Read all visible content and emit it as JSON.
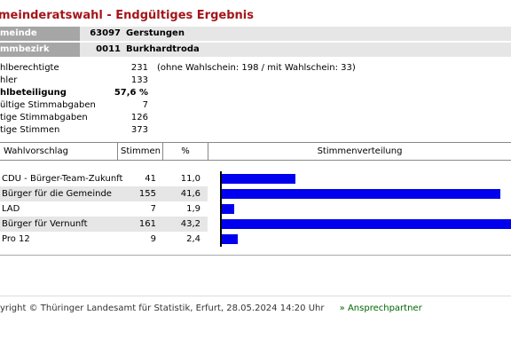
{
  "title": "meinderatswahl - Endgültiges Ergebnis",
  "gemeinde": {
    "label": "meinde",
    "number": "63097",
    "name": "Gerstungen"
  },
  "bezirk": {
    "label": "mmbezirk",
    "number": "0011",
    "name": "Burkhardtroda"
  },
  "stats": [
    {
      "label": "hlberechtigte",
      "value": "231",
      "extra": "(ohne Wahlschein: 198 / mit Wahlschein: 33)",
      "bold": false
    },
    {
      "label": "hler",
      "value": "133",
      "extra": "",
      "bold": false
    },
    {
      "label": "hlbeteiligung",
      "value": "57,6 %",
      "extra": "",
      "bold": true
    },
    {
      "label": "ültige Stimmabgaben",
      "value": "7",
      "extra": "",
      "bold": false
    },
    {
      "label": "tige Stimmabgaben",
      "value": "126",
      "extra": "",
      "bold": false
    },
    {
      "label": "tige Stimmen",
      "value": "373",
      "extra": "",
      "bold": false
    }
  ],
  "table": {
    "headers": {
      "vorschlag": "Wahlvorschlag",
      "stimmen": "Stimmen",
      "prozent": "%",
      "verteilung": "Stimmenverteilung"
    },
    "rows": [
      {
        "name": "CDU - Bürger-Team-Zukunft",
        "stimmen": "41",
        "prozent": "11,0",
        "share": 11.0
      },
      {
        "name": "Bürger für die Gemeinde",
        "stimmen": "155",
        "prozent": "41,6",
        "share": 41.6
      },
      {
        "name": "LAD",
        "stimmen": "7",
        "prozent": "1,9",
        "share": 1.9
      },
      {
        "name": "Bürger für Vernunft",
        "stimmen": "161",
        "prozent": "43,2",
        "share": 43.2
      },
      {
        "name": "Pro 12",
        "stimmen": "9",
        "prozent": "2,4",
        "share": 2.4
      }
    ],
    "bar_color": "#0000ee"
  },
  "footer": {
    "copyright": "yright © Thüringer Landesamt für Statistik, Erfurt, 28.05.2024 14:20 Uhr",
    "link": "» Ansprechpartner"
  },
  "colors": {
    "title": "#a4161a",
    "label_bg": "#a6a6a6",
    "row_bg": "#e6e6e6"
  }
}
